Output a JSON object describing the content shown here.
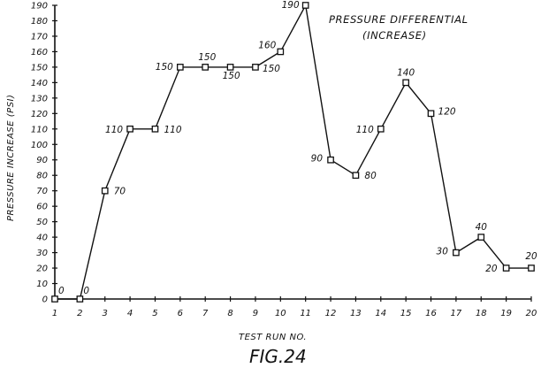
{
  "chart_data": {
    "type": "line",
    "title": "PRESSURE DIFFERENTIAL",
    "subtitle": "(INCREASE)",
    "xlabel": "TEST RUN NO.",
    "ylabel": "PRESSURE INCREASE (PSI)",
    "x": [
      1,
      2,
      3,
      4,
      5,
      6,
      7,
      8,
      9,
      10,
      11,
      12,
      13,
      14,
      15,
      16,
      17,
      18,
      19,
      20
    ],
    "y": [
      0,
      0,
      70,
      110,
      110,
      150,
      150,
      150,
      150,
      160,
      190,
      90,
      80,
      110,
      140,
      120,
      30,
      40,
      20,
      20
    ],
    "data_labels": [
      "0",
      "0",
      "70",
      "110",
      "110",
      "150",
      "150",
      "150",
      "150",
      "160",
      "190",
      "90",
      "80",
      "110",
      "140",
      "120",
      "30",
      "40",
      "20",
      "20"
    ],
    "xlim": [
      1,
      20
    ],
    "ylim": [
      0,
      190
    ],
    "x_ticks": [
      1,
      2,
      3,
      4,
      5,
      6,
      7,
      8,
      9,
      10,
      11,
      12,
      13,
      14,
      15,
      16,
      17,
      18,
      19,
      20
    ],
    "y_ticks": [
      0,
      10,
      20,
      30,
      40,
      50,
      60,
      70,
      80,
      90,
      100,
      110,
      120,
      130,
      140,
      150,
      160,
      170,
      180,
      190
    ],
    "grid": false,
    "marker": "square",
    "figure_label": "FIG.24"
  }
}
